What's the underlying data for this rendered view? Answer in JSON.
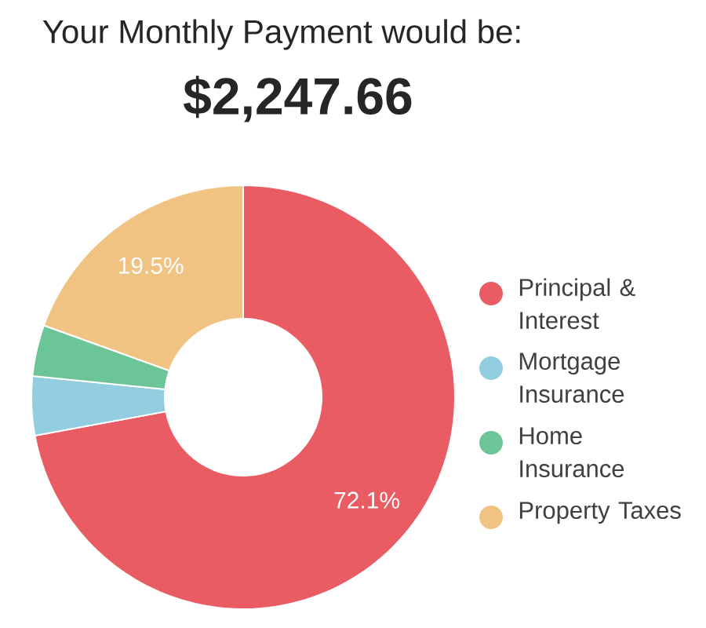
{
  "chart_data": {
    "type": "donut",
    "title": "Your Monthly Payment would be:",
    "subtitle": "$2,247.66",
    "categories": [
      "Principal & Interest",
      "Mortgage Insurance",
      "Home Insurance",
      "Property Taxes"
    ],
    "values": [
      72.1,
      4.5,
      3.9,
      19.5
    ],
    "colors": [
      "#e95c64",
      "#93cde0",
      "#6cc596",
      "#f0c383"
    ],
    "value_labels": [
      "72.1%",
      null,
      null,
      "19.5%"
    ],
    "legend": "right"
  }
}
